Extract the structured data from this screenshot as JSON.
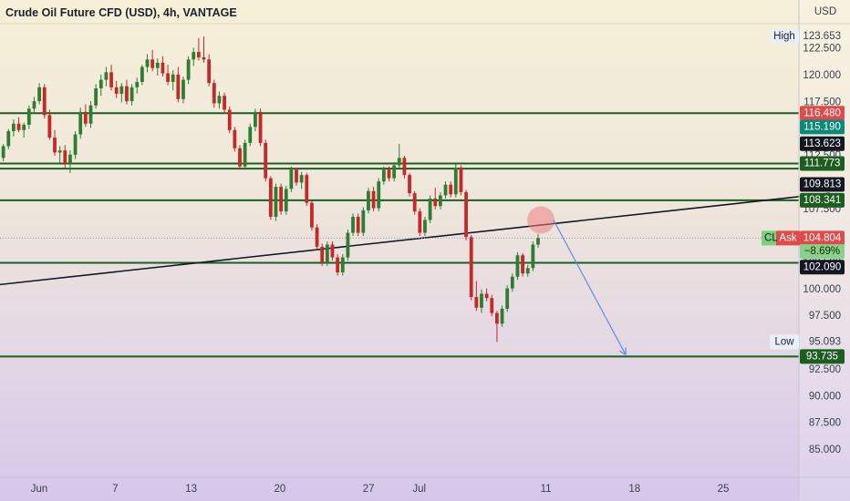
{
  "header": {
    "title": "Crude Oil Future CFD (USD), 4h, VANTAGE"
  },
  "currency_label": "USD",
  "colors": {
    "up": "#2e7d32",
    "down": "#c62828",
    "level_line": "#1b5e20",
    "trendline": "#131722",
    "arrow": "#5b8def",
    "tag_green": "#1b5e20",
    "tag_teal": "#0b8a7a",
    "tag_red": "#e04a4a",
    "tag_dark": "#131722",
    "marker": "#f08080"
  },
  "chart_data": {
    "type": "candlestick",
    "title": "Crude Oil Future CFD (USD), 4h, VANTAGE",
    "ylim": [
      82.8,
      125.7
    ],
    "x_ticks": [
      {
        "label": "Jun",
        "day": 1
      },
      {
        "label": "7",
        "day": 7
      },
      {
        "label": "13",
        "day": 13
      },
      {
        "label": "20",
        "day": 20
      },
      {
        "label": "27",
        "day": 27
      },
      {
        "label": "Jul",
        "day": 31
      },
      {
        "label": "11",
        "day": 41
      },
      {
        "label": "18",
        "day": 48
      },
      {
        "label": "25",
        "day": 55
      }
    ],
    "y_ticks": [
      "123.653",
      "122.500",
      "120.000",
      "117.500",
      "115.000",
      "112.500",
      "107.500",
      "102.500",
      "100.000",
      "97.500",
      "95.093",
      "92.500",
      "90.000",
      "87.500",
      "85.000"
    ],
    "horizontal_levels": [
      116.48,
      111.773,
      111.3,
      108.341,
      102.5,
      93.735
    ],
    "trendline": {
      "start": {
        "day": -2.2,
        "value": 100.45
      },
      "end": {
        "day": 63.4,
        "value": 109.0
      }
    },
    "projection_arrow": {
      "from": {
        "day": 41.6,
        "value": 106.5
      },
      "to": {
        "day": 47.3,
        "value": 93.9
      }
    },
    "marker": {
      "day": 40.6,
      "value": 106.5
    },
    "price_tags": [
      {
        "label": "",
        "value": "116.480",
        "y": 116.48,
        "style": "red"
      },
      {
        "label": "",
        "value": "115.190",
        "y": 115.19,
        "style": "teal"
      },
      {
        "label": "",
        "value": "113.623",
        "y": 113.623,
        "style": "dark"
      },
      {
        "label": "",
        "value": "111.773",
        "y": 111.773,
        "style": "green"
      },
      {
        "label": "",
        "value": "109.813",
        "y": 109.813,
        "style": "dark"
      },
      {
        "label": "",
        "value": "108.341",
        "y": 108.341,
        "style": "green"
      },
      {
        "label": "Ask",
        "value": "104.804",
        "y": 104.804,
        "style": "red"
      },
      {
        "label": "",
        "value": "−8.69%",
        "y": 103.55,
        "style": "lightgreen"
      },
      {
        "label": "",
        "value": "102.090",
        "y": 102.09,
        "style": "dark"
      },
      {
        "label": "",
        "value": "93.735",
        "y": 93.735,
        "style": "green"
      }
    ],
    "side_labels": [
      {
        "text": "High",
        "y": 123.653
      },
      {
        "text": "Low",
        "y": 95.093
      },
      {
        "text": "CL",
        "y": 104.804
      }
    ],
    "candles": [
      [
        111.5,
        112.5,
        111.0,
        112.3
      ],
      [
        112.3,
        113.6,
        112.0,
        113.4
      ],
      [
        113.4,
        115.0,
        113.1,
        114.8
      ],
      [
        114.8,
        115.9,
        114.3,
        115.5
      ],
      [
        115.5,
        116.1,
        114.7,
        114.9
      ],
      [
        114.9,
        115.6,
        114.2,
        115.4
      ],
      [
        115.4,
        117.2,
        115.0,
        116.9
      ],
      [
        116.9,
        118.0,
        116.4,
        117.6
      ],
      [
        117.6,
        119.3,
        117.3,
        118.9
      ],
      [
        118.9,
        119.2,
        116.0,
        116.3
      ],
      [
        116.3,
        116.8,
        114.0,
        114.2
      ],
      [
        114.2,
        114.9,
        112.5,
        112.8
      ],
      [
        112.8,
        113.4,
        111.8,
        113.0
      ],
      [
        113.0,
        113.5,
        111.4,
        111.8
      ],
      [
        111.8,
        113.0,
        110.9,
        112.6
      ],
      [
        112.6,
        114.8,
        112.2,
        114.5
      ],
      [
        114.5,
        117.0,
        114.1,
        116.6
      ],
      [
        116.6,
        117.3,
        115.2,
        115.5
      ],
      [
        115.5,
        117.6,
        115.1,
        117.2
      ],
      [
        117.2,
        119.2,
        116.9,
        118.8
      ],
      [
        118.8,
        120.1,
        118.1,
        119.6
      ],
      [
        119.6,
        120.8,
        119.0,
        120.3
      ],
      [
        120.3,
        121.0,
        118.6,
        118.9
      ],
      [
        118.9,
        119.5,
        117.9,
        118.3
      ],
      [
        118.3,
        119.3,
        117.5,
        119.0
      ],
      [
        119.0,
        119.6,
        117.3,
        117.6
      ],
      [
        117.6,
        119.2,
        117.2,
        118.9
      ],
      [
        118.9,
        119.8,
        118.3,
        119.4
      ],
      [
        119.4,
        121.0,
        119.1,
        120.8
      ],
      [
        120.8,
        122.0,
        120.3,
        121.5
      ],
      [
        121.5,
        122.4,
        120.4,
        120.7
      ],
      [
        120.7,
        121.6,
        120.0,
        121.2
      ],
      [
        121.2,
        121.8,
        119.9,
        120.2
      ],
      [
        120.2,
        121.0,
        119.1,
        119.4
      ],
      [
        119.4,
        120.5,
        118.6,
        120.1
      ],
      [
        120.1,
        120.8,
        117.5,
        117.8
      ],
      [
        117.8,
        119.9,
        117.4,
        119.6
      ],
      [
        119.6,
        121.8,
        119.2,
        121.5
      ],
      [
        121.5,
        122.6,
        120.9,
        122.2
      ],
      [
        122.2,
        123.5,
        121.4,
        121.7
      ],
      [
        121.7,
        123.653,
        121.2,
        121.5
      ],
      [
        121.5,
        122.0,
        119.0,
        119.3
      ],
      [
        119.3,
        119.6,
        117.0,
        117.4
      ],
      [
        117.4,
        118.5,
        116.9,
        118.1
      ],
      [
        118.1,
        118.4,
        116.4,
        116.8
      ],
      [
        116.8,
        117.1,
        114.6,
        114.9
      ],
      [
        114.9,
        115.2,
        112.9,
        113.2
      ],
      [
        113.2,
        113.5,
        111.2,
        111.5
      ],
      [
        111.5,
        114.0,
        111.2,
        113.7
      ],
      [
        113.7,
        115.5,
        113.4,
        115.2
      ],
      [
        115.2,
        116.9,
        114.8,
        116.6
      ],
      [
        116.6,
        116.9,
        113.4,
        113.7
      ],
      [
        113.7,
        114.0,
        110.1,
        110.4
      ],
      [
        110.4,
        110.6,
        106.5,
        106.8
      ],
      [
        106.8,
        109.9,
        106.4,
        109.6
      ],
      [
        109.6,
        109.9,
        107.0,
        107.3
      ],
      [
        107.3,
        109.7,
        107.0,
        109.4
      ],
      [
        109.4,
        111.5,
        109.1,
        111.2
      ],
      [
        111.2,
        111.4,
        109.7,
        110.0
      ],
      [
        110.0,
        111.0,
        109.4,
        110.7
      ],
      [
        110.7,
        110.9,
        107.8,
        108.1
      ],
      [
        108.1,
        108.3,
        105.5,
        105.8
      ],
      [
        105.8,
        106.1,
        103.7,
        104.0
      ],
      [
        104.0,
        104.3,
        102.2,
        102.5
      ],
      [
        102.5,
        104.5,
        102.2,
        104.2
      ],
      [
        104.2,
        104.5,
        102.7,
        103.0
      ],
      [
        103.0,
        103.3,
        101.3,
        101.6
      ],
      [
        101.6,
        103.3,
        101.3,
        103.0
      ],
      [
        103.0,
        105.6,
        102.7,
        105.3
      ],
      [
        105.3,
        107.1,
        105.0,
        106.8
      ],
      [
        106.8,
        107.1,
        105.0,
        105.3
      ],
      [
        105.3,
        107.7,
        105.0,
        107.4
      ],
      [
        107.4,
        109.5,
        107.1,
        109.2
      ],
      [
        109.2,
        109.6,
        107.3,
        107.6
      ],
      [
        107.6,
        110.4,
        107.3,
        110.1
      ],
      [
        110.1,
        111.5,
        109.8,
        111.2
      ],
      [
        111.2,
        111.5,
        110.1,
        110.4
      ],
      [
        110.4,
        111.9,
        110.1,
        111.6
      ],
      [
        111.6,
        113.6,
        111.3,
        112.3
      ],
      [
        112.3,
        112.5,
        110.4,
        110.7
      ],
      [
        110.7,
        110.9,
        108.7,
        109.0
      ],
      [
        109.0,
        109.2,
        107.0,
        107.3
      ],
      [
        107.3,
        107.6,
        105.0,
        105.3
      ],
      [
        105.3,
        106.8,
        105.0,
        106.5
      ],
      [
        106.5,
        108.8,
        106.2,
        108.5
      ],
      [
        108.5,
        109.5,
        107.5,
        107.8
      ],
      [
        107.8,
        109.1,
        107.5,
        108.8
      ],
      [
        108.8,
        110.1,
        108.5,
        109.8
      ],
      [
        109.8,
        110.1,
        108.6,
        108.9
      ],
      [
        108.9,
        111.7,
        108.6,
        111.4
      ],
      [
        111.4,
        111.6,
        108.8,
        109.1
      ],
      [
        109.1,
        109.3,
        104.6,
        104.9
      ],
      [
        104.9,
        105.1,
        99.0,
        99.3
      ],
      [
        99.3,
        100.8,
        98.0,
        98.3
      ],
      [
        98.3,
        100.0,
        97.8,
        99.6
      ],
      [
        99.6,
        100.1,
        98.9,
        99.2
      ],
      [
        99.2,
        99.5,
        97.5,
        97.8
      ],
      [
        97.8,
        98.0,
        95.093,
        96.8
      ],
      [
        96.8,
        98.5,
        96.5,
        98.2
      ],
      [
        98.2,
        100.4,
        97.9,
        100.1
      ],
      [
        100.1,
        101.5,
        99.8,
        101.2
      ],
      [
        101.2,
        103.5,
        100.9,
        103.2
      ],
      [
        103.2,
        103.4,
        101.2,
        101.5
      ],
      [
        101.5,
        102.3,
        101.2,
        102.0
      ],
      [
        102.0,
        104.5,
        101.7,
        104.2
      ],
      [
        104.2,
        105.2,
        103.9,
        104.804
      ]
    ]
  }
}
